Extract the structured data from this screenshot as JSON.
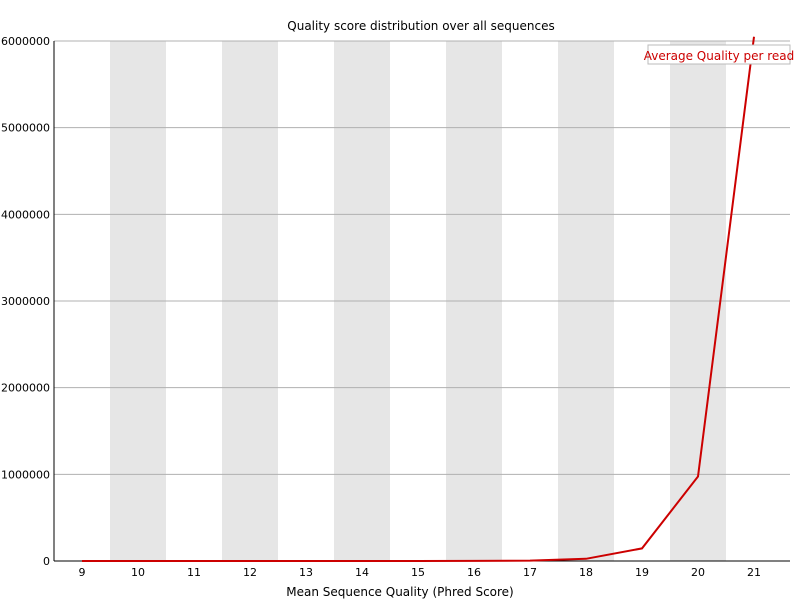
{
  "chart_data": {
    "type": "line",
    "title": "Quality score distribution over all sequences",
    "xlabel": "Mean Sequence Quality (Phred Score)",
    "ylabel": "",
    "categories": [
      "9",
      "10",
      "11",
      "12",
      "13",
      "14",
      "15",
      "16",
      "17",
      "18",
      "19",
      "20",
      "21"
    ],
    "yticks": [
      "0",
      "1000000",
      "2000000",
      "3000000",
      "4000000",
      "5000000",
      "6000000"
    ],
    "ylim": [
      0,
      6000000
    ],
    "grid": "horizontal",
    "alternating_column_shading": true,
    "legend_position": "top-right",
    "series": [
      {
        "name": "Average Quality per read",
        "color": "#cc0000",
        "values": [
          10,
          30,
          50,
          80,
          120,
          200,
          350,
          1200,
          4500,
          25000,
          145000,
          975000,
          6050000
        ]
      }
    ]
  },
  "colors": {
    "shade": "#e6e6e6",
    "grid": "#b0b0b0",
    "axis": "#000000",
    "line": "#cc0000"
  }
}
